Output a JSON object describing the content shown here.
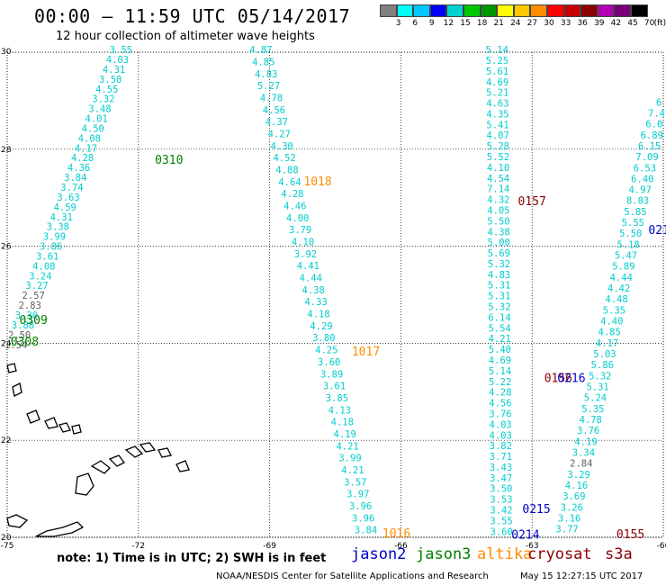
{
  "header": {
    "title": "00:00 – 11:59 UTC 05/14/2017",
    "subtitle": "12 hour collection of altimeter wave heights"
  },
  "color_scale": {
    "unit": "(ft)",
    "swatches": [
      "#7f7f7f",
      "#00ffff",
      "#00c8ff",
      "#0000ff",
      "#00d2d2",
      "#00c800",
      "#009600",
      "#ffff00",
      "#ffc800",
      "#ff8c00",
      "#ff0000",
      "#c80000",
      "#8c0000",
      "#b400b4",
      "#780078",
      "#000000"
    ],
    "labels": [
      "3",
      "6",
      "9",
      "12",
      "15",
      "18",
      "21",
      "24",
      "27",
      "30",
      "33",
      "36",
      "39",
      "42",
      "45",
      "70"
    ]
  },
  "map": {
    "lat_ticks": [
      "30",
      "28",
      "26",
      "24",
      "22",
      "20"
    ],
    "lon_ticks": [
      "-75",
      "-72",
      "-69",
      "-66",
      "-63",
      "-60"
    ],
    "lat_values": [
      30,
      28,
      26,
      24,
      22,
      20
    ],
    "lon_values": [
      -75,
      -72,
      -69,
      -66,
      -63,
      -60
    ]
  },
  "colors": {
    "jason2": "#0000c8",
    "jason3": "#008000",
    "altika": "#ff8c00",
    "cryosat": "#8c0000",
    "height_cyan": "#00cccc",
    "height_gray": "#606060"
  },
  "tracks": [
    {
      "name": "track-0309-0308",
      "values": [
        "3.55",
        "4.03",
        "4.31",
        "3.50",
        "4.55",
        "3.32",
        "3.48",
        "4.01",
        "4.50",
        "4.08",
        "4.17",
        "4.28",
        "4.36",
        "3.84",
        "3.74",
        "3.63",
        "4.59",
        "4.31",
        "3.38",
        "3.99",
        "3.86",
        "3.61",
        "4.08",
        "3.24",
        "3.27",
        "2.57",
        "2.83",
        "3.30",
        "3.88",
        "2.50",
        "1.54"
      ],
      "gray": [
        "2.57",
        "2.83",
        "2.50",
        "1.54"
      ],
      "lon_start": -72.4,
      "lat_start": 29.98,
      "lon_end": -74.8,
      "lat_end": 23.9
    },
    {
      "name": "track-1018-1017-1016",
      "values": [
        "4.87",
        "4.85",
        "4.83",
        "5.27",
        "4.78",
        "4.56",
        "4.37",
        "4.27",
        "4.30",
        "4.52",
        "4.88",
        "4.64",
        "4.28",
        "4.46",
        "4.00",
        "3.79",
        "4.10",
        "3.92",
        "4.41",
        "4.44",
        "4.38",
        "4.33",
        "4.18",
        "4.29",
        "3.80",
        "4.25",
        "3.60",
        "3.89",
        "3.61",
        "3.85",
        "4.13",
        "4.18",
        "4.19",
        "4.21",
        "3.99",
        "4.21",
        "3.57",
        "3.97",
        "3.96",
        "3.96",
        "3.84"
      ],
      "gray": [],
      "lon_start": -69.2,
      "lat_start": 29.98,
      "lon_end": -66.8,
      "lat_end": 20.08
    },
    {
      "name": "track-0157-0156-0214",
      "values": [
        "5.14",
        "5.25",
        "5.61",
        "4.69",
        "5.21",
        "4.63",
        "4.35",
        "5.41",
        "4.07",
        "5.28",
        "5.52",
        "4.10",
        "4.54",
        "7.14",
        "4.32",
        "4.05",
        "5.50",
        "4.38",
        "5.00",
        "5.69",
        "5.32",
        "4.83",
        "5.31",
        "5.31",
        "5.32",
        "6.14",
        "5.54",
        "4.21",
        "5.40",
        "4.69",
        "5.14",
        "5.22",
        "4.28",
        "4.56",
        "3.76",
        "4.03",
        "4.03",
        "3.82",
        "3.71",
        "3.43",
        "3.47",
        "3.50",
        "3.53",
        "3.42",
        "3.55",
        "3.60"
      ],
      "gray": [],
      "lon_start": -63.8,
      "lat_start": 29.98,
      "lon_end": -63.7,
      "lat_end": 20.05
    },
    {
      "name": "track-0215-0155",
      "values": [
        "6",
        "7.4",
        "6.0",
        "6.89",
        "6.15",
        "7.09",
        "6.53",
        "6.40",
        "4.97",
        "8.03",
        "5.85",
        "5.55",
        "5.50",
        "5.18",
        "5.47",
        "5.89",
        "4.44",
        "4.42",
        "4.48",
        "5.35",
        "4.40",
        "4.85",
        "4.17",
        "5.03",
        "5.86",
        "5.32",
        "5.31",
        "5.24",
        "5.35",
        "4.78",
        "3.76",
        "4.19",
        "3.34",
        "2.84",
        "3.29",
        "4.16",
        "3.69",
        "3.26",
        "3.16",
        "3.77"
      ],
      "gray": [
        "2.84"
      ],
      "lon_start": -60.1,
      "lat_start": 28.9,
      "lon_end": -62.2,
      "lat_end": 20.1
    }
  ],
  "pass_labels": [
    {
      "text": "0310",
      "mission": "jason3",
      "lon": -71.3,
      "lat": 27.7
    },
    {
      "text": "0309",
      "mission": "jason3",
      "lon": -74.4,
      "lat": 24.4
    },
    {
      "text": "0308",
      "mission": "jason3",
      "lon": -74.6,
      "lat": 23.95
    },
    {
      "text": "1018",
      "mission": "altika",
      "lon": -67.9,
      "lat": 27.25
    },
    {
      "text": "1017",
      "mission": "altika",
      "lon": -66.8,
      "lat": 23.75
    },
    {
      "text": "1016",
      "mission": "altika",
      "lon": -66.1,
      "lat": 20.0
    },
    {
      "text": "0157",
      "mission": "cryosat",
      "lon": -63.0,
      "lat": 26.85
    },
    {
      "text": "0156",
      "mission": "cryosat",
      "lon": -62.4,
      "lat": 23.2
    },
    {
      "text": "0216",
      "mission": "jason2",
      "lon": -62.1,
      "lat": 23.2
    },
    {
      "text": "021",
      "mission": "jason2",
      "lon": -60.1,
      "lat": 26.25
    },
    {
      "text": "0215",
      "mission": "jason2",
      "lon": -62.9,
      "lat": 20.5
    },
    {
      "text": "0214",
      "mission": "jason2",
      "lon": -63.15,
      "lat": 19.97
    },
    {
      "text": "0155",
      "mission": "cryosat",
      "lon": -60.75,
      "lat": 19.98
    }
  ],
  "footer": {
    "note": "note: 1) Time is in UTC; 2) SWH is in feet",
    "legend": [
      {
        "text": "jason2",
        "mission": "jason2"
      },
      {
        "text": "jason3",
        "mission": "jason3"
      },
      {
        "text": "altika",
        "mission": "altika"
      },
      {
        "text": "cryosat",
        "mission": "cryosat"
      },
      {
        "text": "s3a",
        "mission": "cryosat"
      }
    ],
    "credit": "NOAA/NESDIS Center for Satellite Applications and Research",
    "timestamp": "May 15 12:27:15 UTC 2017"
  }
}
